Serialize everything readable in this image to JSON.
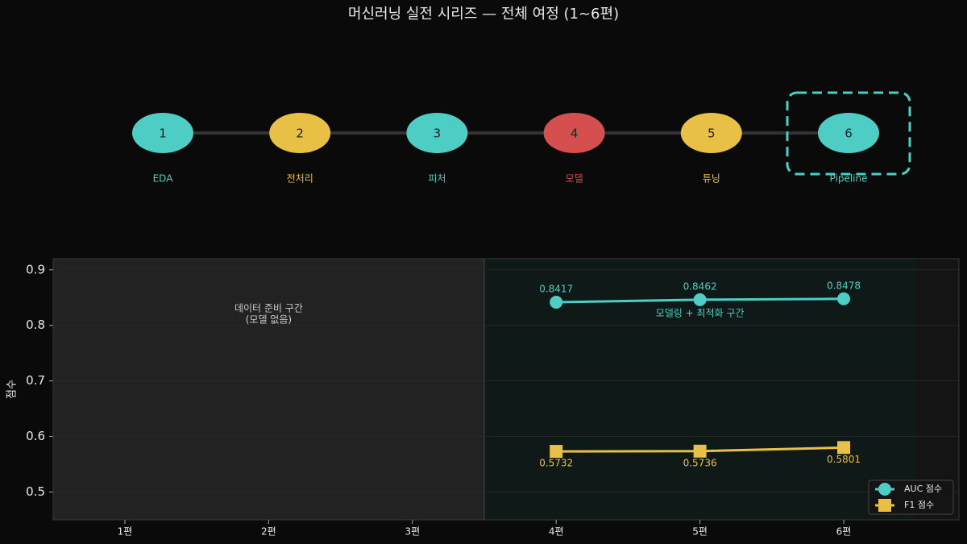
{
  "title": "머신러닝 실전 시리즈 — 전체 여정 (1~6편)",
  "steps": [
    {
      "number": 1,
      "label": "EDA",
      "color": "#4ecdc4"
    },
    {
      "number": 2,
      "label": "전처리",
      "color": "#e9c046"
    },
    {
      "number": 3,
      "label": "피처",
      "color": "#4ecdc4"
    },
    {
      "number": 4,
      "label": "모델",
      "color": "#d64f4f"
    },
    {
      "number": 5,
      "label": "튜닝",
      "color": "#e9c046"
    },
    {
      "number": 6,
      "label": "Pipeline",
      "color": "#4ecdc4",
      "highlighted": true
    }
  ],
  "chart_data": {
    "type": "line",
    "ylabel": "점수",
    "categories": [
      "1편",
      "2편",
      "3편",
      "4편",
      "5편",
      "6편"
    ],
    "series": [
      {
        "name": "AUC 점수",
        "color": "#4ecdc4",
        "marker": "circle",
        "label_position": "above",
        "values": [
          null,
          null,
          null,
          0.8417,
          0.8462,
          0.8478
        ]
      },
      {
        "name": "F1 점수",
        "color": "#e9c046",
        "marker": "square",
        "label_position": "below",
        "values": [
          null,
          null,
          null,
          0.5732,
          0.5736,
          0.5801
        ]
      }
    ],
    "ylim": [
      0.45,
      0.92
    ],
    "yticks": [
      0.5,
      0.6,
      0.7,
      0.8,
      0.9
    ],
    "grid": true,
    "legend": "lower right",
    "annotations": [
      "데이터 준비 구간",
      "(모델 없음)",
      "모델링 + 최적화 구간"
    ]
  }
}
